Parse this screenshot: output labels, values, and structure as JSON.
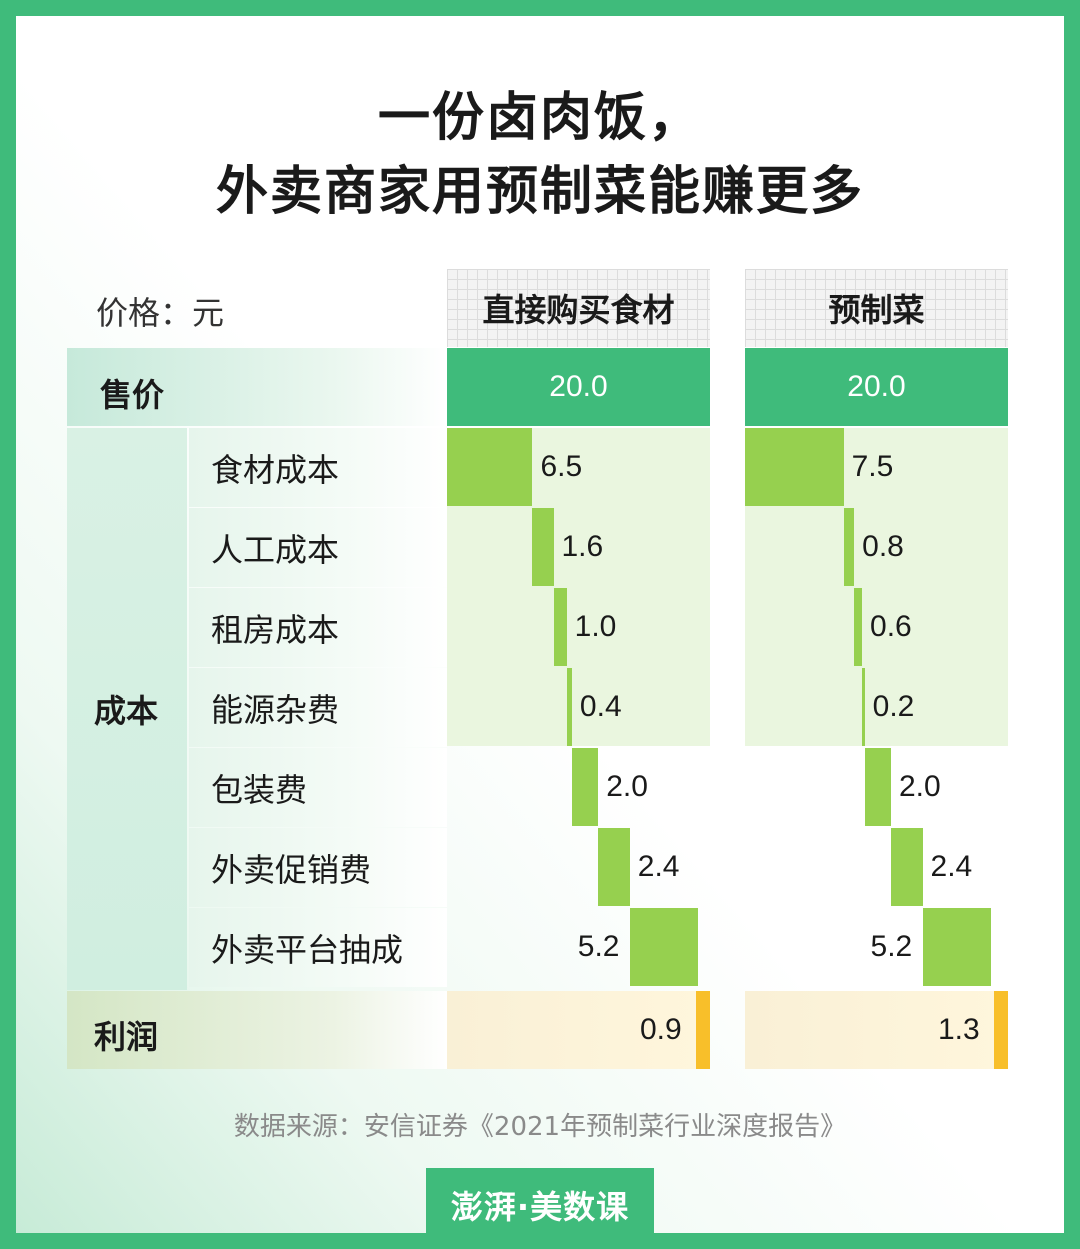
{
  "title_line1": "一份卤肉饭，",
  "title_line2": "外卖商家用预制菜能赚更多",
  "unit_label": "价格：元",
  "columns": [
    "直接购买食材",
    "预制菜"
  ],
  "rows": {
    "sale": "售价",
    "cost": "成本",
    "profit": "利润",
    "cost_items": [
      "食材成本",
      "人工成本",
      "租房成本",
      "能源杂费",
      "包装费",
      "外卖促销费",
      "外卖平台抽成"
    ]
  },
  "source": "数据来源：安信证券《2021年预制菜行业深度报告》",
  "logo": "澎湃·美数课",
  "colors": {
    "accent": "#3fbb7b",
    "cost_bar": "#96d04f",
    "profit_bar": "#f8bf2a"
  },
  "chart_data": {
    "type": "waterfall",
    "series": [
      {
        "name": "直接购买食材",
        "sale_price": 20.0,
        "costs": [
          6.5,
          1.6,
          1.0,
          0.4,
          2.0,
          2.4,
          5.2
        ],
        "profit": 0.9,
        "labels": {
          "sale": "20.0",
          "costs": [
            "6.5",
            "1.6",
            "1.0",
            "0.4",
            "2.0",
            "2.4",
            "5.2"
          ],
          "profit": "0.9"
        }
      },
      {
        "name": "预制菜",
        "sale_price": 20.0,
        "costs": [
          7.5,
          0.8,
          0.6,
          0.2,
          2.0,
          2.4,
          5.2
        ],
        "profit": 1.3,
        "labels": {
          "sale": "20.0",
          "costs": [
            "7.5",
            "0.8",
            "0.6",
            "0.2",
            "2.0",
            "2.4",
            "5.2"
          ],
          "profit": "1.3"
        }
      }
    ]
  }
}
